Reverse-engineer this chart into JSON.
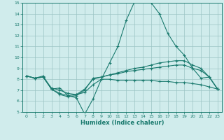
{
  "xlabel": "Humidex (Indice chaleur)",
  "x": [
    0,
    1,
    2,
    3,
    4,
    5,
    6,
    7,
    8,
    9,
    10,
    11,
    12,
    13,
    14,
    15,
    16,
    17,
    18,
    19,
    20,
    21,
    22,
    23
  ],
  "line1": [
    8.3,
    8.1,
    8.3,
    7.1,
    7.2,
    6.5,
    6.3,
    4.8,
    6.2,
    8.0,
    9.5,
    11.0,
    13.4,
    15.1,
    15.2,
    15.0,
    14.0,
    12.2,
    11.0,
    10.2,
    9.0,
    8.1,
    8.2,
    7.1
  ],
  "line2": [
    8.3,
    8.1,
    8.2,
    7.1,
    6.6,
    6.4,
    6.5,
    7.0,
    8.1,
    8.2,
    8.4,
    8.6,
    8.8,
    9.0,
    9.1,
    9.3,
    9.5,
    9.6,
    9.7,
    9.7,
    9.3,
    9.0,
    8.2,
    7.1
  ],
  "line3": [
    8.3,
    8.1,
    8.2,
    7.1,
    6.7,
    6.5,
    6.6,
    7.1,
    8.0,
    8.2,
    8.4,
    8.5,
    8.7,
    8.8,
    8.9,
    9.0,
    9.1,
    9.2,
    9.3,
    9.3,
    9.0,
    8.8,
    8.2,
    7.1
  ],
  "line4": [
    8.3,
    8.1,
    8.2,
    7.2,
    7.0,
    6.7,
    6.6,
    6.8,
    7.5,
    8.0,
    8.0,
    7.9,
    7.9,
    7.9,
    7.9,
    7.9,
    7.8,
    7.8,
    7.7,
    7.7,
    7.6,
    7.5,
    7.3,
    7.1
  ],
  "line_color": "#1a7a6e",
  "bg_color": "#d0ecec",
  "grid_color": "#9cc4c4",
  "ylim": [
    5,
    15
  ],
  "yticks": [
    5,
    6,
    7,
    8,
    9,
    10,
    11,
    12,
    13,
    14,
    15
  ],
  "xticks": [
    0,
    1,
    2,
    3,
    4,
    5,
    6,
    7,
    8,
    9,
    10,
    11,
    12,
    13,
    14,
    15,
    16,
    17,
    18,
    19,
    20,
    21,
    22,
    23
  ]
}
